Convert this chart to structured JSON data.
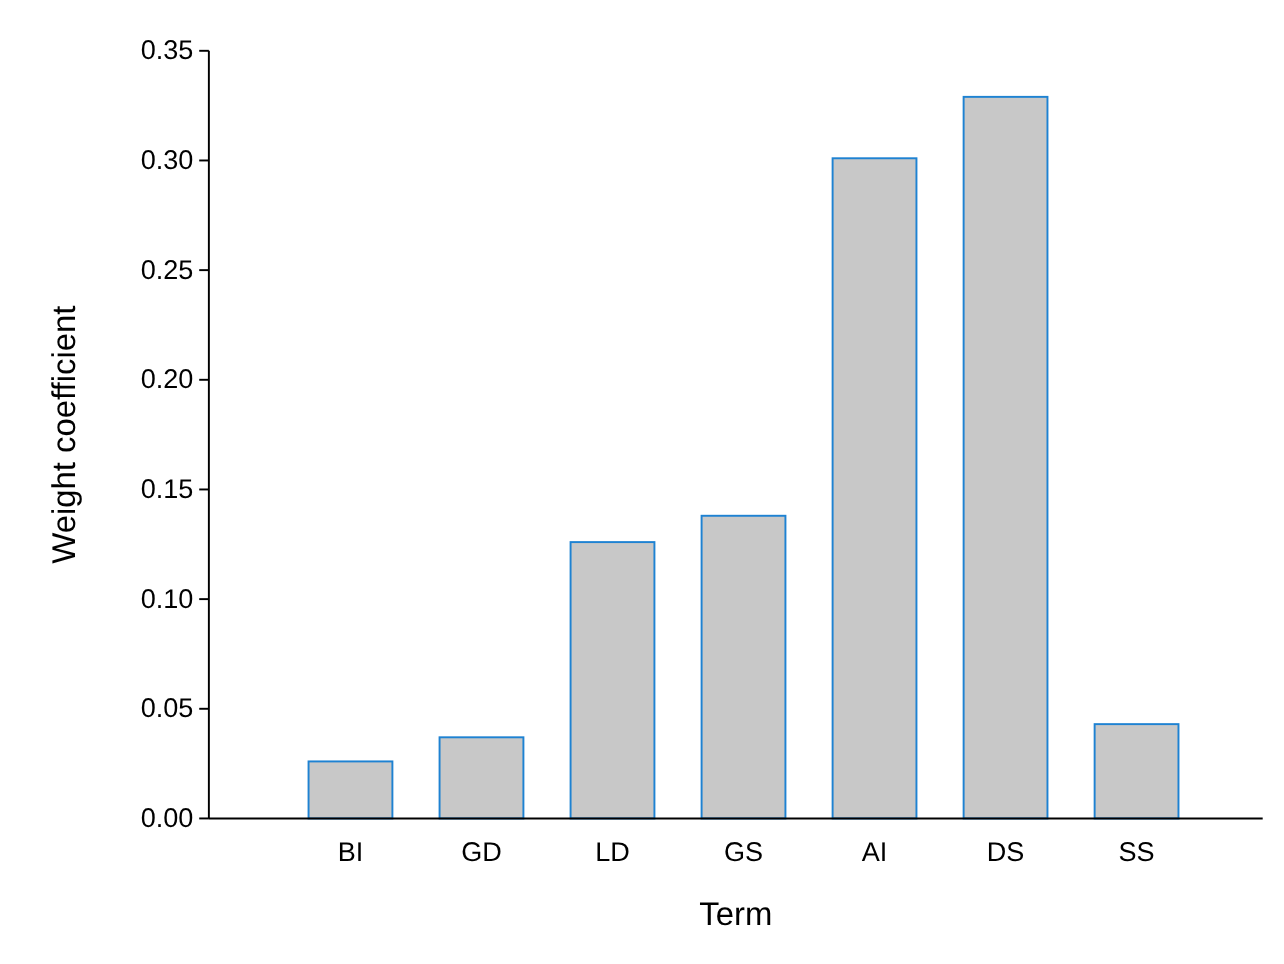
{
  "chart_data": {
    "type": "bar",
    "xlabel": "Term",
    "ylabel": "Weight coefficient",
    "categories": [
      "BI",
      "GD",
      "LD",
      "GS",
      "AI",
      "DS",
      "SS"
    ],
    "values": [
      0.026,
      0.037,
      0.126,
      0.138,
      0.301,
      0.329,
      0.043
    ],
    "color": "#c8c8c8",
    "ylim": [
      0,
      0.35
    ],
    "yticks": [
      {
        "value": 0,
        "label": "0.00"
      },
      {
        "value": 0.05,
        "label": "0.05"
      },
      {
        "value": 0.1,
        "label": "0.10"
      },
      {
        "value": 0.15,
        "label": "0.15"
      },
      {
        "value": 0.2,
        "label": "0.20"
      },
      {
        "value": 0.25,
        "label": "0.25"
      },
      {
        "value": 0.3,
        "label": "0.30"
      },
      {
        "value": 0.35,
        "label": "0.35"
      }
    ],
    "grid": false
  }
}
